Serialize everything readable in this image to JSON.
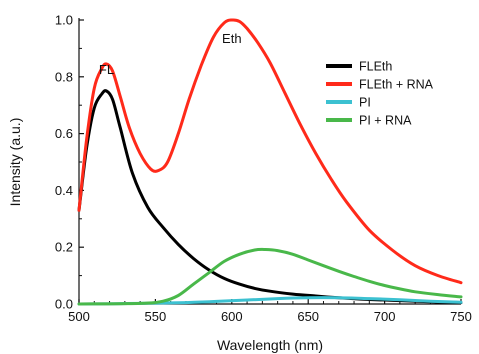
{
  "chart_data": {
    "type": "line",
    "title": "",
    "xlabel": "Wavelength (nm)",
    "ylabel": "Intensity (a.u.)",
    "xlim": [
      500,
      750
    ],
    "ylim": [
      0.0,
      1.0
    ],
    "xticks": [
      "500",
      "550",
      "600",
      "650",
      "700",
      "750"
    ],
    "yticks": [
      "0.0",
      "0.2",
      "0.4",
      "0.6",
      "0.8",
      "1.0"
    ],
    "grid": false,
    "legend_position": "top-right",
    "annotations": [
      {
        "text": "FL",
        "x": 518,
        "y": 0.88
      },
      {
        "text": "Eth",
        "x": 600,
        "y": 0.99
      }
    ],
    "series": [
      {
        "name": "FLEth",
        "color": "#000000",
        "x": [
          500,
          505,
          510,
          515,
          518,
          522,
          527,
          535,
          545,
          555,
          565,
          575,
          585,
          595,
          605,
          615,
          625,
          640,
          655,
          670,
          690,
          710,
          730,
          750
        ],
        "y": [
          0.33,
          0.55,
          0.69,
          0.74,
          0.75,
          0.72,
          0.62,
          0.46,
          0.34,
          0.27,
          0.21,
          0.16,
          0.12,
          0.09,
          0.07,
          0.055,
          0.045,
          0.035,
          0.028,
          0.022,
          0.016,
          0.012,
          0.008,
          0.005
        ]
      },
      {
        "name": "FLEth + RNA",
        "color": "#ff2a1a",
        "x": [
          500,
          505,
          510,
          515,
          518,
          522,
          527,
          533,
          540,
          547,
          552,
          558,
          565,
          572,
          580,
          588,
          595,
          600,
          605,
          610,
          617,
          625,
          635,
          645,
          655,
          665,
          675,
          690,
          705,
          720,
          735,
          750
        ],
        "y": [
          0.33,
          0.58,
          0.76,
          0.83,
          0.845,
          0.82,
          0.73,
          0.62,
          0.53,
          0.475,
          0.47,
          0.5,
          0.6,
          0.72,
          0.84,
          0.94,
          0.99,
          1.0,
          0.995,
          0.97,
          0.92,
          0.85,
          0.74,
          0.63,
          0.53,
          0.44,
          0.36,
          0.26,
          0.19,
          0.135,
          0.1,
          0.075
        ]
      },
      {
        "name": "PI",
        "color": "#3cc1d1",
        "x": [
          500,
          540,
          570,
          590,
          610,
          630,
          650,
          670,
          690,
          710,
          730,
          750
        ],
        "y": [
          0.0,
          0.002,
          0.005,
          0.009,
          0.014,
          0.019,
          0.022,
          0.022,
          0.019,
          0.015,
          0.01,
          0.006
        ]
      },
      {
        "name": "PI + RNA",
        "color": "#49b84a",
        "x": [
          500,
          540,
          555,
          565,
          575,
          585,
          595,
          605,
          615,
          622,
          630,
          640,
          650,
          660,
          670,
          680,
          690,
          700,
          710,
          720,
          735,
          750
        ],
        "y": [
          0.0,
          0.002,
          0.01,
          0.03,
          0.07,
          0.11,
          0.15,
          0.175,
          0.19,
          0.192,
          0.188,
          0.175,
          0.155,
          0.135,
          0.115,
          0.097,
          0.08,
          0.065,
          0.053,
          0.043,
          0.033,
          0.025
        ]
      }
    ]
  }
}
